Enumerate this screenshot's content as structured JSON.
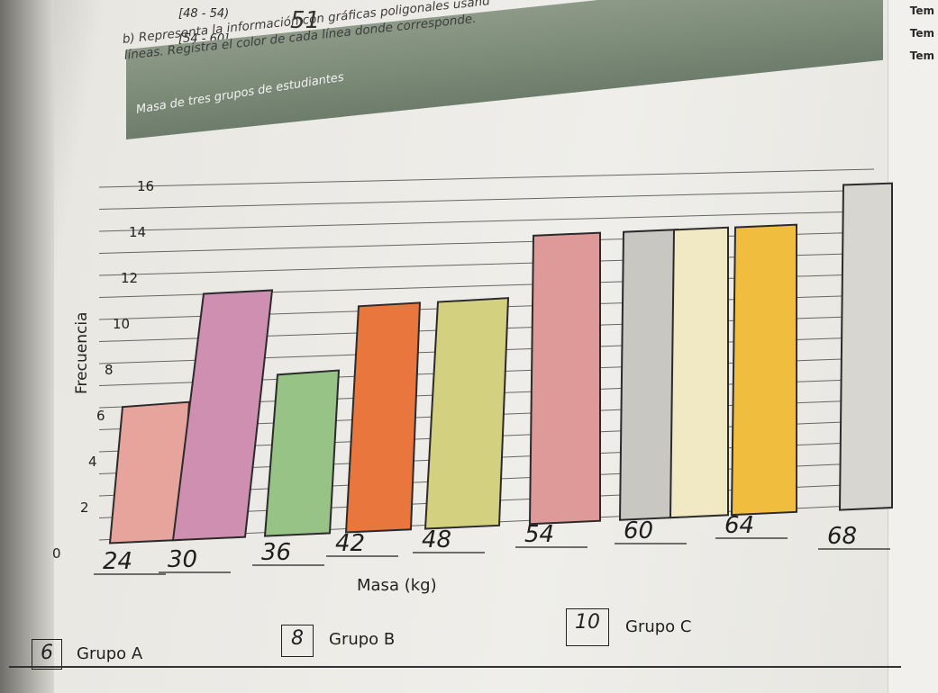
{
  "header": {
    "table_rows": [
      "[48 - 54)",
      "[54 - 60]"
    ],
    "handwritten_value": "51",
    "instruction_1": "b) Representa la información con gráficas poligonales usand",
    "instruction_2": "líneas. Registra el color de cada línea donde corresponde.",
    "margin_words": [
      "Tem",
      "Tem",
      "Tem"
    ]
  },
  "chart_data": {
    "type": "bar",
    "title": "Masa de tres grupos de estudiantes",
    "xlabel": "Masa (kg)",
    "ylabel": "Frecuencia",
    "yticks": [
      "0",
      "2",
      "4",
      "6",
      "8",
      "10",
      "12",
      "14",
      "16"
    ],
    "ylim": [
      0,
      16
    ],
    "categories": [
      "24",
      "30",
      "36",
      "42",
      "48",
      "54",
      "60",
      "64",
      "68"
    ],
    "grid": true,
    "bars": [
      {
        "values": [
          6
        ],
        "color": "#e7a49c"
      },
      {
        "values": [
          11
        ],
        "color": "#cf8fb0"
      },
      {
        "values": [
          7
        ],
        "color": "#97c387"
      },
      {
        "values": [
          10
        ],
        "color": "#e9763d"
      },
      {
        "values": [
          10
        ],
        "color": "#d3d07f"
      },
      {
        "values": [
          13
        ],
        "color": "#de9a98"
      },
      {
        "values": [
          13
        ],
        "color": "#c9c7c2"
      },
      {
        "values": [
          13
        ],
        "color": "#f0e9c4"
      },
      {
        "values": [
          13
        ],
        "color": "#f1bd3e"
      },
      {
        "values": [
          15
        ],
        "color": "#d8d6d1"
      }
    ]
  },
  "legend": {
    "items": [
      {
        "label": "Grupo A",
        "value": "6"
      },
      {
        "label": "Grupo B",
        "value": "8"
      },
      {
        "label": "Grupo C",
        "value": "10"
      }
    ]
  }
}
